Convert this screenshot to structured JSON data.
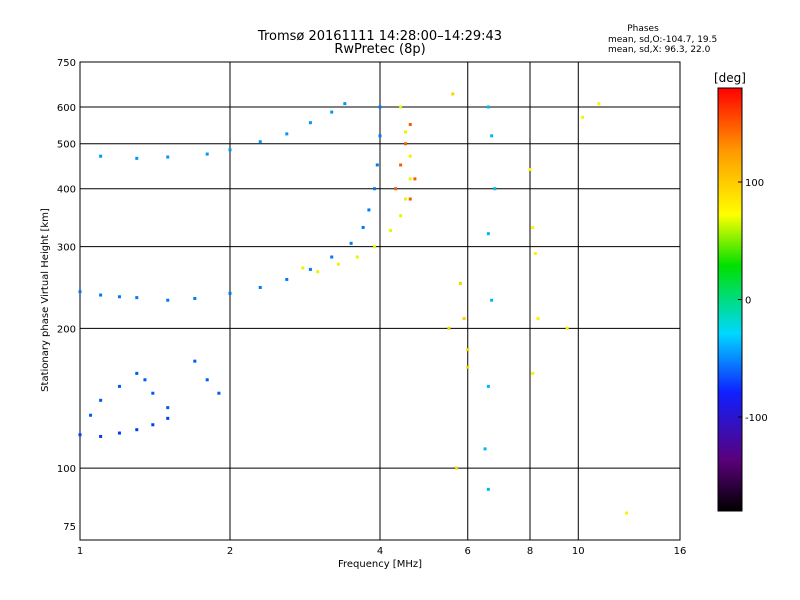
{
  "chart_data": {
    "type": "scatter",
    "title": "Tromsø 20161111 14:28:00–14:29:43",
    "subtitle": "RwPretec (8p)",
    "xlabel": "Frequency [MHz]",
    "ylabel": "Stationary phase Virtual Height [km]",
    "x_scale": "log",
    "y_scale": "log",
    "xlim": [
      1,
      16
    ],
    "ylim": [
      70,
      750
    ],
    "x_ticks": [
      "1",
      "2",
      "4",
      "6",
      "8",
      "10",
      "16"
    ],
    "x_tick_values": [
      1,
      2,
      4,
      6,
      8,
      10,
      16
    ],
    "y_ticks": [
      "750",
      "600",
      "500",
      "400",
      "300",
      "200",
      "100",
      "75"
    ],
    "y_tick_values": [
      750,
      600,
      500,
      400,
      300,
      200,
      100,
      75
    ],
    "grid": true,
    "colorbar": {
      "label": "[deg]",
      "range": [
        -180,
        180
      ],
      "ticks": [
        "100",
        "0",
        "-100"
      ],
      "tick_values": [
        100,
        0,
        -100
      ]
    },
    "info": {
      "heading": "Phases",
      "line1": "mean, sd,O:-104.7, 19.5",
      "line2": "mean, sd,X:  96.3, 22.0"
    },
    "series": [
      {
        "values": [
          [
            1.0,
            240
          ],
          [
            1.1,
            236
          ],
          [
            1.2,
            234
          ],
          [
            1.3,
            233
          ],
          [
            1.5,
            230
          ],
          [
            1.7,
            232
          ],
          [
            2.0,
            238
          ],
          [
            2.3,
            245
          ],
          [
            2.6,
            255
          ],
          [
            2.9,
            268
          ],
          [
            3.2,
            285
          ],
          [
            3.5,
            305
          ],
          [
            3.7,
            330
          ],
          [
            3.8,
            360
          ],
          [
            3.9,
            400
          ],
          [
            3.95,
            450
          ],
          [
            4.0,
            520
          ],
          [
            4.0,
            600
          ]
        ],
        "phase": -100
      },
      {
        "values": [
          [
            1.1,
            470
          ],
          [
            1.3,
            465
          ],
          [
            1.5,
            468
          ],
          [
            1.8,
            475
          ],
          [
            2.0,
            485
          ],
          [
            2.3,
            505
          ],
          [
            2.6,
            525
          ],
          [
            2.9,
            555
          ],
          [
            3.2,
            585
          ],
          [
            3.4,
            610
          ]
        ],
        "phase": -90
      },
      {
        "values": [
          [
            1.05,
            130
          ],
          [
            1.1,
            140
          ],
          [
            1.2,
            150
          ],
          [
            1.3,
            160
          ],
          [
            1.35,
            155
          ],
          [
            1.4,
            145
          ],
          [
            1.5,
            135
          ],
          [
            1.7,
            170
          ],
          [
            1.8,
            155
          ],
          [
            1.9,
            145
          ]
        ],
        "phase": -110
      },
      {
        "values": [
          [
            1.0,
            118
          ],
          [
            1.1,
            117
          ],
          [
            1.2,
            119
          ],
          [
            1.3,
            121
          ],
          [
            1.4,
            124
          ],
          [
            1.5,
            128
          ]
        ],
        "phase": -120
      },
      {
        "values": [
          [
            2.8,
            270
          ],
          [
            3.0,
            265
          ],
          [
            3.3,
            275
          ],
          [
            3.6,
            285
          ],
          [
            3.9,
            300
          ],
          [
            4.2,
            325
          ],
          [
            4.4,
            350
          ],
          [
            4.5,
            380
          ],
          [
            4.6,
            420
          ],
          [
            4.6,
            470
          ],
          [
            4.5,
            530
          ],
          [
            4.4,
            600
          ]
        ],
        "phase": 96
      },
      {
        "values": [
          [
            4.3,
            400
          ],
          [
            4.4,
            450
          ],
          [
            4.5,
            500
          ],
          [
            4.6,
            550
          ],
          [
            4.7,
            420
          ],
          [
            4.6,
            380
          ]
        ],
        "phase": 150
      },
      {
        "values": [
          [
            6.6,
            600
          ],
          [
            6.7,
            520
          ],
          [
            6.8,
            400
          ],
          [
            6.6,
            320
          ],
          [
            6.7,
            230
          ],
          [
            6.6,
            150
          ],
          [
            6.5,
            110
          ],
          [
            6.6,
            90
          ]
        ],
        "phase": -80
      },
      {
        "values": [
          [
            5.6,
            640
          ],
          [
            5.8,
            250
          ],
          [
            5.9,
            210
          ],
          [
            6.0,
            180
          ],
          [
            6.0,
            165
          ],
          [
            5.7,
            100
          ],
          [
            5.5,
            200
          ]
        ],
        "phase": 110
      },
      {
        "values": [
          [
            8.0,
            440
          ],
          [
            8.1,
            330
          ],
          [
            8.2,
            290
          ],
          [
            8.3,
            210
          ],
          [
            8.1,
            160
          ],
          [
            9.5,
            200
          ],
          [
            10.2,
            570
          ],
          [
            12.5,
            80
          ],
          [
            11.0,
            610
          ]
        ],
        "phase": 100
      }
    ]
  }
}
